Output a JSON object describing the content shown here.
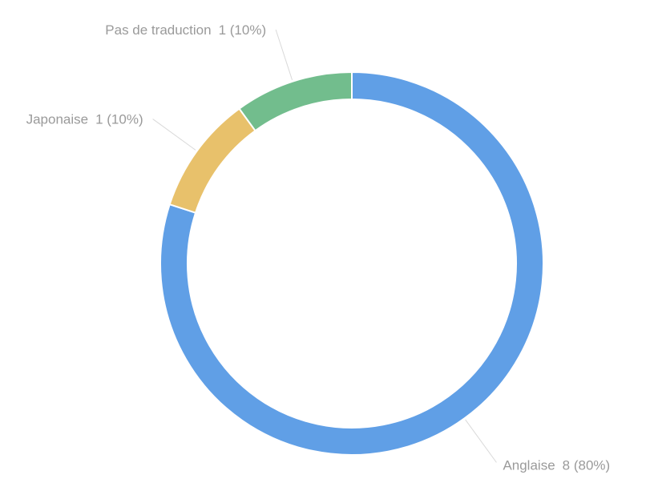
{
  "chart_data": {
    "type": "donut",
    "categories": [
      "Anglaise",
      "Japonaise",
      "Pas de traduction"
    ],
    "values": [
      8,
      1,
      1
    ],
    "value_labels": [
      "8 (80%)",
      "1 (10%)",
      "1 (10%)"
    ],
    "colors": [
      "#609fe6",
      "#e8c16b",
      "#72bd8d"
    ]
  }
}
